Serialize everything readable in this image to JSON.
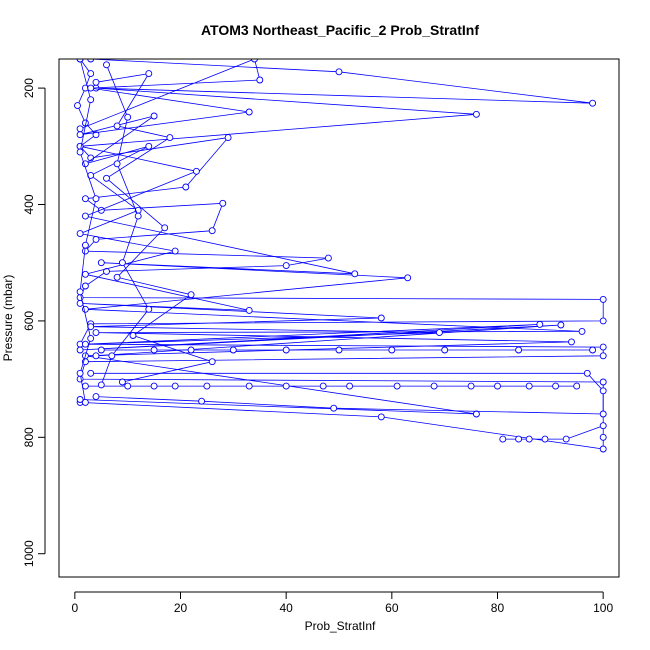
{
  "chart_data": {
    "type": "line",
    "title": "ATOM3 Northeast_Pacific_2 Prob_StratInf",
    "xlabel": "Prob_StratInf",
    "ylabel": "Pressure (mbar)",
    "xlim": [
      -3,
      103
    ],
    "ylim": [
      1040,
      150
    ],
    "y_axis_inverted": true,
    "grid": false,
    "legend": "none",
    "series_color": "#0000ff",
    "marker": "open-circle",
    "x_ticks": [
      0,
      20,
      40,
      60,
      80,
      100
    ],
    "x_tick_labels": [
      "0",
      "20",
      "40",
      "60",
      "80",
      "100"
    ],
    "y_ticks": [
      200,
      400,
      600,
      800,
      1000
    ],
    "y_tick_labels": [
      "200",
      "400",
      "600",
      "800",
      "1000"
    ],
    "series": [
      {
        "values": [
          {
            "x": 1,
            "y": 150
          },
          {
            "x": 3,
            "y": 175
          },
          {
            "x": 2,
            "y": 200
          },
          {
            "x": 0.5,
            "y": 230
          },
          {
            "x": 2,
            "y": 260
          },
          {
            "x": 4,
            "y": 280
          },
          {
            "x": 1,
            "y": 300
          },
          {
            "x": 3,
            "y": 320
          },
          {
            "x": 29,
            "y": 285
          },
          {
            "x": 21,
            "y": 370
          },
          {
            "x": 2,
            "y": 390
          },
          {
            "x": 5,
            "y": 410
          },
          {
            "x": 28,
            "y": 398
          },
          {
            "x": 26,
            "y": 445
          },
          {
            "x": 4,
            "y": 460
          },
          {
            "x": 2,
            "y": 480
          },
          {
            "x": 48,
            "y": 492
          },
          {
            "x": 40,
            "y": 505
          },
          {
            "x": 6,
            "y": 515
          },
          {
            "x": 2,
            "y": 540
          },
          {
            "x": 1,
            "y": 560
          },
          {
            "x": 100,
            "y": 563
          },
          {
            "x": 100,
            "y": 600
          },
          {
            "x": 3,
            "y": 605
          },
          {
            "x": 1,
            "y": 640
          },
          {
            "x": 100,
            "y": 645
          },
          {
            "x": 100,
            "y": 660
          },
          {
            "x": 2,
            "y": 670
          },
          {
            "x": 1,
            "y": 700
          },
          {
            "x": 100,
            "y": 705
          },
          {
            "x": 100,
            "y": 800
          },
          {
            "x": 100,
            "y": 820
          },
          {
            "x": 58,
            "y": 765
          },
          {
            "x": 1,
            "y": 740
          }
        ]
      },
      {
        "values": [
          {
            "x": 3,
            "y": 150
          },
          {
            "x": 50,
            "y": 172
          },
          {
            "x": 98,
            "y": 226
          },
          {
            "x": 4,
            "y": 200
          },
          {
            "x": 76,
            "y": 245
          },
          {
            "x": 1,
            "y": 300
          },
          {
            "x": 23,
            "y": 343
          },
          {
            "x": 2,
            "y": 420
          },
          {
            "x": 53,
            "y": 519
          },
          {
            "x": 5,
            "y": 500
          },
          {
            "x": 63,
            "y": 526
          },
          {
            "x": 2,
            "y": 580
          },
          {
            "x": 96,
            "y": 618
          },
          {
            "x": 4,
            "y": 620
          },
          {
            "x": 94,
            "y": 636
          },
          {
            "x": 2,
            "y": 660
          },
          {
            "x": 76,
            "y": 760
          },
          {
            "x": 1,
            "y": 735
          }
        ]
      },
      {
        "values": [
          {
            "x": 1,
            "y": 270
          },
          {
            "x": 34,
            "y": 150
          },
          {
            "x": 35,
            "y": 186
          },
          {
            "x": 3,
            "y": 200
          },
          {
            "x": 33,
            "y": 241
          },
          {
            "x": 1,
            "y": 280
          },
          {
            "x": 15,
            "y": 248
          },
          {
            "x": 2,
            "y": 330
          },
          {
            "x": 14,
            "y": 300
          },
          {
            "x": 3,
            "y": 350
          },
          {
            "x": 12,
            "y": 410
          },
          {
            "x": 1,
            "y": 450
          },
          {
            "x": 19,
            "y": 480
          },
          {
            "x": 2,
            "y": 520
          },
          {
            "x": 33,
            "y": 582
          },
          {
            "x": 1,
            "y": 570
          },
          {
            "x": 58,
            "y": 595
          },
          {
            "x": 3,
            "y": 610
          },
          {
            "x": 69,
            "y": 620
          },
          {
            "x": 2,
            "y": 640
          },
          {
            "x": 88,
            "y": 606
          },
          {
            "x": 1,
            "y": 650
          },
          {
            "x": 92,
            "y": 607
          },
          {
            "x": 4,
            "y": 660
          }
        ]
      },
      {
        "values": [
          {
            "x": 2,
            "y": 712
          },
          {
            "x": 10,
            "y": 712
          },
          {
            "x": 15,
            "y": 712
          },
          {
            "x": 19,
            "y": 712
          },
          {
            "x": 25,
            "y": 712
          },
          {
            "x": 33,
            "y": 712
          },
          {
            "x": 40,
            "y": 712
          },
          {
            "x": 47,
            "y": 712
          },
          {
            "x": 52,
            "y": 712
          },
          {
            "x": 61,
            "y": 712
          },
          {
            "x": 68,
            "y": 712
          },
          {
            "x": 75,
            "y": 712
          },
          {
            "x": 80,
            "y": 712
          },
          {
            "x": 86,
            "y": 712
          },
          {
            "x": 91,
            "y": 712
          },
          {
            "x": 95,
            "y": 712
          }
        ]
      },
      {
        "values": [
          {
            "x": 5,
            "y": 650
          },
          {
            "x": 15,
            "y": 650
          },
          {
            "x": 22,
            "y": 650
          },
          {
            "x": 30,
            "y": 650
          },
          {
            "x": 40,
            "y": 650
          },
          {
            "x": 50,
            "y": 650
          },
          {
            "x": 60,
            "y": 650
          },
          {
            "x": 70,
            "y": 650
          },
          {
            "x": 84,
            "y": 650
          },
          {
            "x": 98,
            "y": 650
          }
        ]
      },
      {
        "values": [
          {
            "x": 81,
            "y": 803
          },
          {
            "x": 84,
            "y": 803
          },
          {
            "x": 86,
            "y": 803
          },
          {
            "x": 89,
            "y": 803
          },
          {
            "x": 93,
            "y": 803
          },
          {
            "x": 100,
            "y": 780
          }
        ]
      },
      {
        "values": [
          {
            "x": 4,
            "y": 730
          },
          {
            "x": 24,
            "y": 738
          },
          {
            "x": 49,
            "y": 750
          },
          {
            "x": 100,
            "y": 760
          },
          {
            "x": 100,
            "y": 720
          },
          {
            "x": 97,
            "y": 690
          },
          {
            "x": 3,
            "y": 690
          }
        ]
      },
      {
        "values": [
          {
            "x": 1,
            "y": 150
          },
          {
            "x": 3,
            "y": 220
          },
          {
            "x": 1,
            "y": 310
          },
          {
            "x": 4,
            "y": 390
          },
          {
            "x": 2,
            "y": 470
          },
          {
            "x": 1,
            "y": 550
          },
          {
            "x": 3,
            "y": 630
          },
          {
            "x": 1,
            "y": 690
          },
          {
            "x": 2,
            "y": 740
          }
        ]
      },
      {
        "values": [
          {
            "x": 6,
            "y": 160
          },
          {
            "x": 10,
            "y": 250
          },
          {
            "x": 8,
            "y": 330
          },
          {
            "x": 12,
            "y": 420
          },
          {
            "x": 9,
            "y": 500
          },
          {
            "x": 14,
            "y": 580
          },
          {
            "x": 7,
            "y": 660
          },
          {
            "x": 5,
            "y": 710
          }
        ]
      },
      {
        "values": [
          {
            "x": 4,
            "y": 190
          },
          {
            "x": 14,
            "y": 175
          },
          {
            "x": 8,
            "y": 265
          },
          {
            "x": 18,
            "y": 285
          },
          {
            "x": 6,
            "y": 355
          },
          {
            "x": 17,
            "y": 440
          },
          {
            "x": 8,
            "y": 525
          },
          {
            "x": 22,
            "y": 555
          },
          {
            "x": 11,
            "y": 625
          },
          {
            "x": 26,
            "y": 670
          },
          {
            "x": 9,
            "y": 705
          }
        ]
      }
    ]
  }
}
